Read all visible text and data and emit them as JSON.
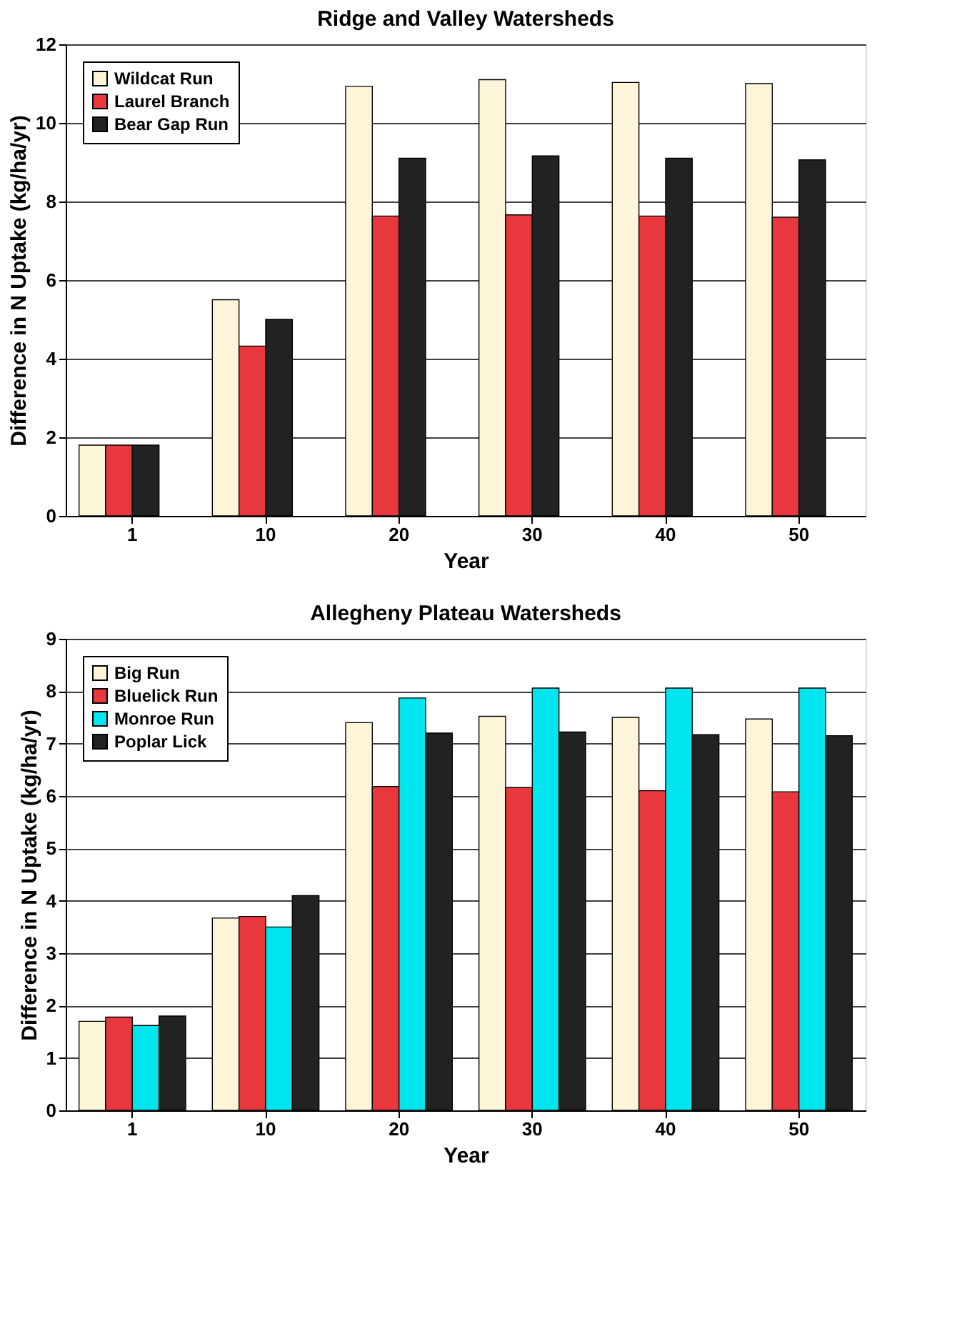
{
  "chart_data": [
    {
      "type": "bar",
      "title": "Ridge and Valley Watersheds",
      "xlabel": "Year",
      "ylabel": "Difference in N Uptake (kg/ha/yr)",
      "categories": [
        "1",
        "10",
        "20",
        "30",
        "40",
        "50"
      ],
      "series": [
        {
          "name": "Wildcat Run",
          "color": "#fdf5d8",
          "values": [
            1.8,
            5.5,
            10.93,
            11.1,
            11.03,
            11.0
          ]
        },
        {
          "name": "Laurel Branch",
          "color": "#e8383d",
          "values": [
            1.8,
            4.32,
            7.63,
            7.66,
            7.63,
            7.6
          ]
        },
        {
          "name": "Bear Gap Run",
          "color": "#222222",
          "values": [
            1.8,
            5.0,
            9.1,
            9.16,
            9.1,
            9.06
          ]
        }
      ],
      "ylim": [
        0,
        12
      ],
      "yticks": [
        0,
        2,
        4,
        6,
        8,
        10,
        12
      ],
      "grid": "y",
      "legend": "top left"
    },
    {
      "type": "bar",
      "title": "Allegheny Plateau Watersheds",
      "xlabel": "Year",
      "ylabel": "Difference in N Uptake (kg/ha/yr)",
      "categories": [
        "1",
        "10",
        "20",
        "30",
        "40",
        "50"
      ],
      "series": [
        {
          "name": "Big Run",
          "color": "#fdf5d8",
          "values": [
            1.7,
            3.67,
            7.4,
            7.52,
            7.5,
            7.47
          ]
        },
        {
          "name": "Bluelick Run",
          "color": "#e8383d",
          "values": [
            1.78,
            3.7,
            6.18,
            6.16,
            6.1,
            6.08
          ]
        },
        {
          "name": "Monroe Run",
          "color": "#00e5ee",
          "values": [
            1.62,
            3.5,
            7.87,
            8.06,
            8.06,
            8.06
          ]
        },
        {
          "name": "Poplar Lick",
          "color": "#222222",
          "values": [
            1.8,
            4.1,
            7.2,
            7.22,
            7.17,
            7.15
          ]
        }
      ],
      "ylim": [
        0,
        9
      ],
      "yticks": [
        0,
        1,
        2,
        3,
        4,
        5,
        6,
        7,
        8,
        9
      ],
      "grid": "y",
      "legend": "top left"
    }
  ]
}
